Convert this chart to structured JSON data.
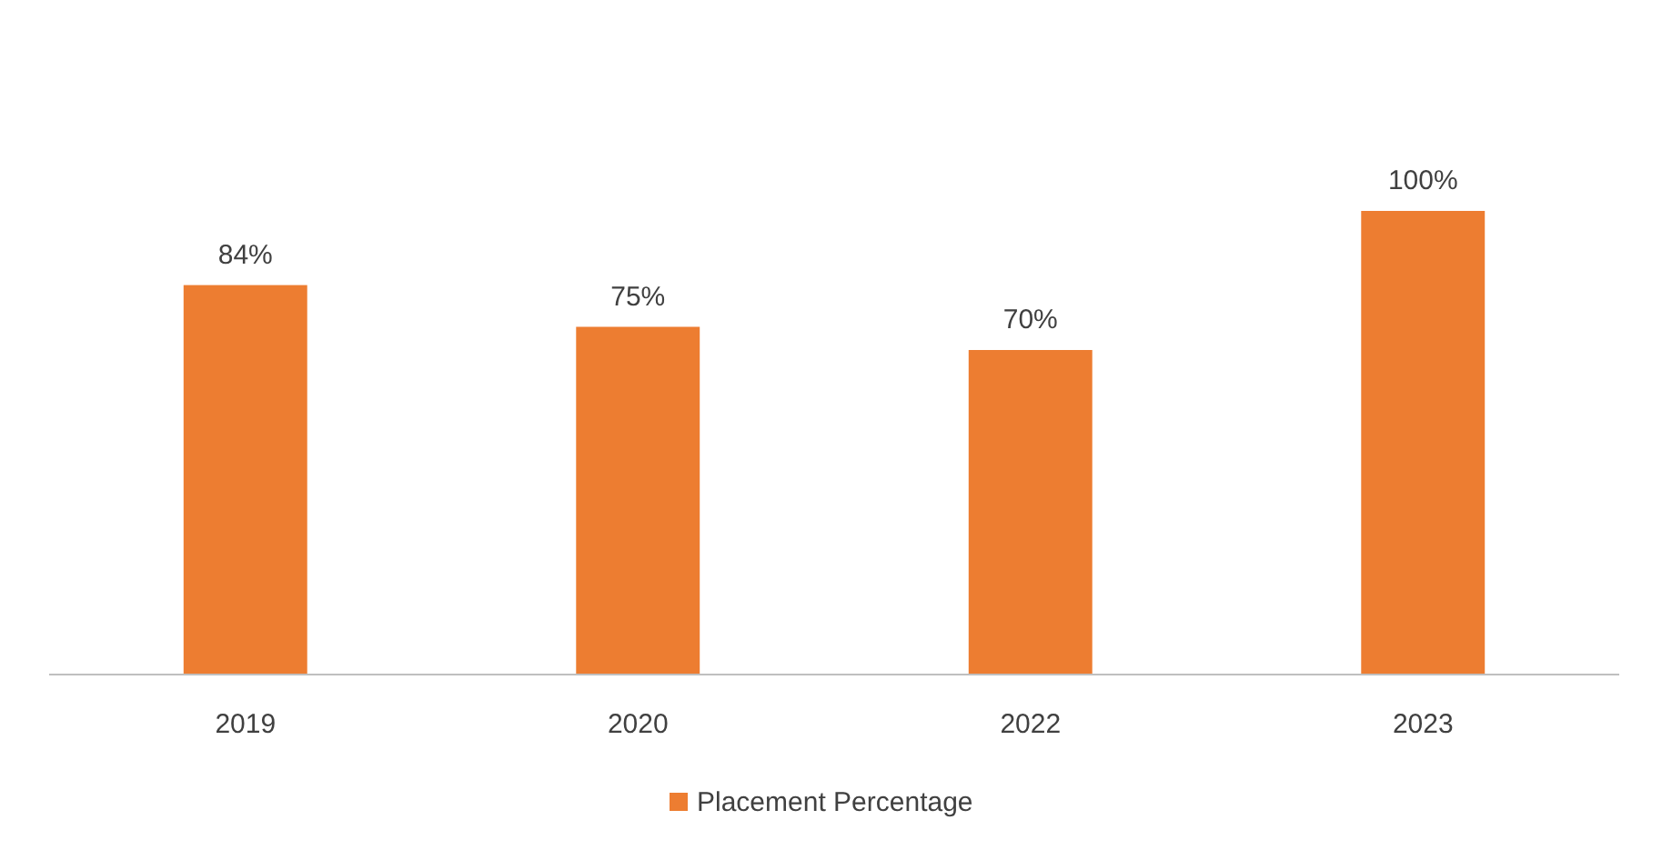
{
  "chart_data": {
    "type": "bar",
    "categories": [
      "2019",
      "2020",
      "2022",
      "2023"
    ],
    "series": [
      {
        "name": "Placement Percentage",
        "color": "#ed7d31",
        "values": [
          84,
          75,
          70,
          100
        ],
        "value_labels": [
          "84%",
          "75%",
          "70%",
          "100%"
        ]
      }
    ],
    "legend": "bottom"
  }
}
